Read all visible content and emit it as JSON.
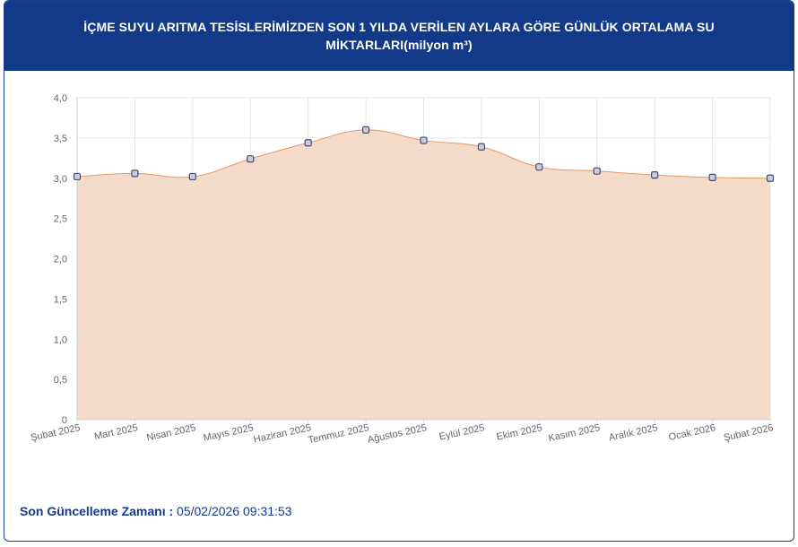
{
  "header": {
    "title": "İÇME SUYU ARITMA TESİSLERİMİZDEN SON 1 YILDA VERİLEN AYLARA GÖRE GÜNLÜK ORTALAMA SU MİKTARLARI(milyon m³)"
  },
  "chart_data": {
    "type": "area",
    "categories": [
      "Şubat 2025",
      "Mart 2025",
      "Nisan 2025",
      "Mayıs 2025",
      "Haziran 2025",
      "Temmuz 2025",
      "Ağustos 2025",
      "Eylül 2025",
      "Ekim 2025",
      "Kasım 2025",
      "Aralık 2025",
      "Ocak 2026",
      "Şubat 2026"
    ],
    "values": [
      3.02,
      3.06,
      3.02,
      3.24,
      3.44,
      3.6,
      3.47,
      3.39,
      3.14,
      3.09,
      3.04,
      3.01,
      3.0
    ],
    "ylim": [
      0,
      4
    ],
    "yticks": [
      "0",
      "0,5",
      "1,0",
      "1,5",
      "2,0",
      "2,5",
      "3,0",
      "3,5",
      "4,0"
    ],
    "title": "",
    "xlabel": "",
    "ylabel": "",
    "grid": true,
    "colors": {
      "fill": "#f3d7c4",
      "line": "#e39a6a",
      "marker_fill": "#c9cde3",
      "marker_stroke": "#4a4a6a"
    }
  },
  "footer": {
    "label": "Son Güncelleme Zamanı :",
    "value": "05/02/2026 09:31:53"
  }
}
